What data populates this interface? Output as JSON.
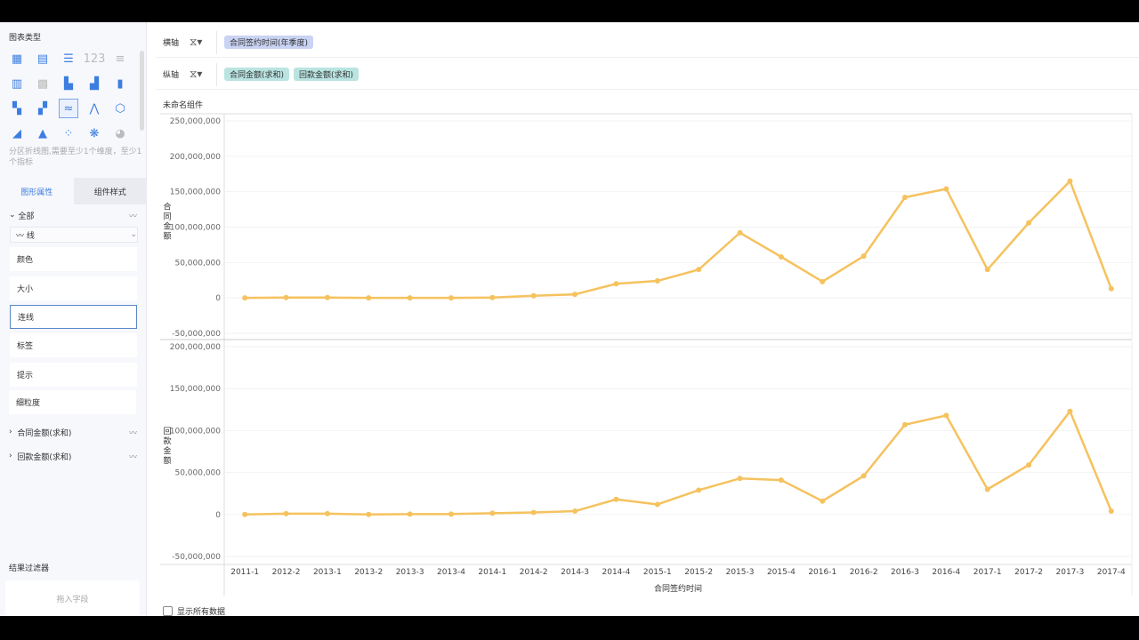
{
  "left": {
    "chart_types_title": "图表类型",
    "chart_type_hint": "分区折线图,需要至少1个维度，至少1个指标",
    "tabs": [
      "图形属性",
      "组件样式"
    ],
    "all_label": "全部",
    "mark_type": "线",
    "properties": [
      "颜色",
      "大小",
      "连线",
      "标签",
      "提示",
      "细粒度"
    ],
    "series": [
      "合同金额(求和)",
      "回款金额(求和)"
    ],
    "filter_title": "结果过滤器",
    "filter_placeholder": "拖入字段"
  },
  "shelves": {
    "x_label": "横轴",
    "x_fields": [
      "合同签约时间(年季度)"
    ],
    "y_label": "纵轴",
    "y_fields": [
      "合同金额(求和)",
      "回款金额(求和)"
    ]
  },
  "component_title": "未命名组件",
  "show_all_label": "显示所有数据",
  "chart_data": {
    "type": "line",
    "line_color": "#f5c25e",
    "xlabel": "合同签约时间",
    "categories": [
      "2011-1",
      "2012-2",
      "2013-1",
      "2013-2",
      "2013-3",
      "2013-4",
      "2014-1",
      "2014-2",
      "2014-3",
      "2014-4",
      "2015-1",
      "2015-2",
      "2015-3",
      "2015-4",
      "2016-1",
      "2016-2",
      "2016-3",
      "2016-4",
      "2017-1",
      "2017-2",
      "2017-3",
      "2017-4"
    ],
    "panels": [
      {
        "ylabel": "合同金额",
        "ylim": [
          -50000000,
          250000000
        ],
        "yticks": [
          -50000000,
          0,
          50000000,
          100000000,
          150000000,
          200000000,
          250000000
        ],
        "ytick_labels": [
          "-50,000,000",
          "0",
          "50,000,000",
          "100,000,000",
          "150,000,000",
          "200,000,000",
          "250,000,000"
        ],
        "values": [
          0,
          500000,
          500000,
          0,
          0,
          0,
          500000,
          3000000,
          5000000,
          20000000,
          24000000,
          40000000,
          92000000,
          58000000,
          23000000,
          59000000,
          142000000,
          154000000,
          40000000,
          106000000,
          165000000,
          13000000
        ]
      },
      {
        "ylabel": "回款金额",
        "ylim": [
          -50000000,
          200000000
        ],
        "yticks": [
          -50000000,
          0,
          50000000,
          100000000,
          150000000,
          200000000
        ],
        "ytick_labels": [
          "-50,000,000",
          "0",
          "50,000,000",
          "100,000,000",
          "150,000,000",
          "200,000,000"
        ],
        "values": [
          0,
          1000000,
          1000000,
          0,
          500000,
          500000,
          1500000,
          2500000,
          4000000,
          18000000,
          12000000,
          29000000,
          43000000,
          41000000,
          16000000,
          46000000,
          107000000,
          118000000,
          30000000,
          59000000,
          123000000,
          4000000
        ]
      }
    ]
  }
}
